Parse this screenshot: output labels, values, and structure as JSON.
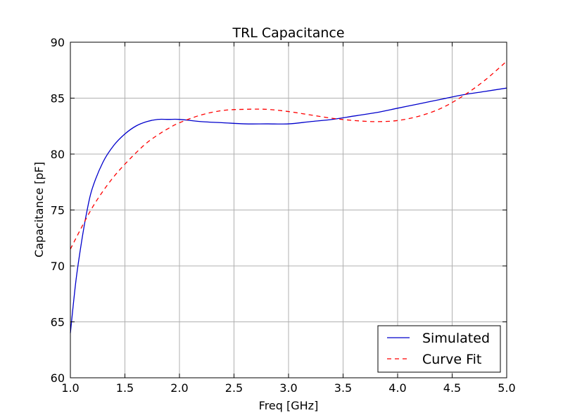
{
  "chart_data": {
    "type": "line",
    "title": "TRL Capacitance",
    "xlabel": "Freq [GHz]",
    "ylabel": "Capacitance [pF]",
    "xlim": [
      1.0,
      5.0
    ],
    "ylim": [
      60,
      90
    ],
    "xticks": [
      1.0,
      1.5,
      2.0,
      2.5,
      3.0,
      3.5,
      4.0,
      4.5,
      5.0
    ],
    "xtick_labels": [
      "1.0",
      "1.5",
      "2.0",
      "2.5",
      "3.0",
      "3.5",
      "4.0",
      "4.5",
      "5.0"
    ],
    "yticks": [
      60,
      65,
      70,
      75,
      80,
      85,
      90
    ],
    "ytick_labels": [
      "60",
      "65",
      "70",
      "75",
      "80",
      "85",
      "90"
    ],
    "grid": true,
    "legend_position": "lower-right",
    "series": [
      {
        "name": "Simulated",
        "color": "#0000cc",
        "linestyle": "solid",
        "x": [
          1.0,
          1.05,
          1.1,
          1.15,
          1.2,
          1.3,
          1.4,
          1.5,
          1.6,
          1.7,
          1.8,
          1.9,
          2.0,
          2.2,
          2.4,
          2.6,
          2.8,
          3.0,
          3.2,
          3.4,
          3.6,
          3.8,
          4.0,
          4.2,
          4.4,
          4.6,
          4.8,
          5.0
        ],
        "y": [
          64.0,
          68.6,
          72.0,
          74.8,
          76.9,
          79.3,
          80.8,
          81.8,
          82.5,
          82.9,
          83.1,
          83.1,
          83.1,
          82.9,
          82.8,
          82.7,
          82.7,
          82.7,
          82.9,
          83.1,
          83.4,
          83.7,
          84.1,
          84.5,
          84.9,
          85.3,
          85.6,
          85.9
        ]
      },
      {
        "name": "Curve Fit",
        "color": "#ff0000",
        "linestyle": "dashed",
        "x": [
          1.0,
          1.1,
          1.2,
          1.3,
          1.4,
          1.5,
          1.6,
          1.7,
          1.8,
          1.9,
          2.0,
          2.2,
          2.4,
          2.6,
          2.8,
          3.0,
          3.2,
          3.4,
          3.6,
          3.8,
          4.0,
          4.2,
          4.4,
          4.6,
          4.8,
          5.0
        ],
        "y": [
          71.5,
          73.4,
          75.2,
          76.7,
          78.0,
          79.1,
          80.1,
          81.0,
          81.7,
          82.3,
          82.8,
          83.5,
          83.9,
          84.0,
          84.0,
          83.8,
          83.5,
          83.2,
          83.0,
          82.9,
          83.0,
          83.4,
          84.1,
          85.2,
          86.6,
          88.3
        ]
      }
    ]
  }
}
